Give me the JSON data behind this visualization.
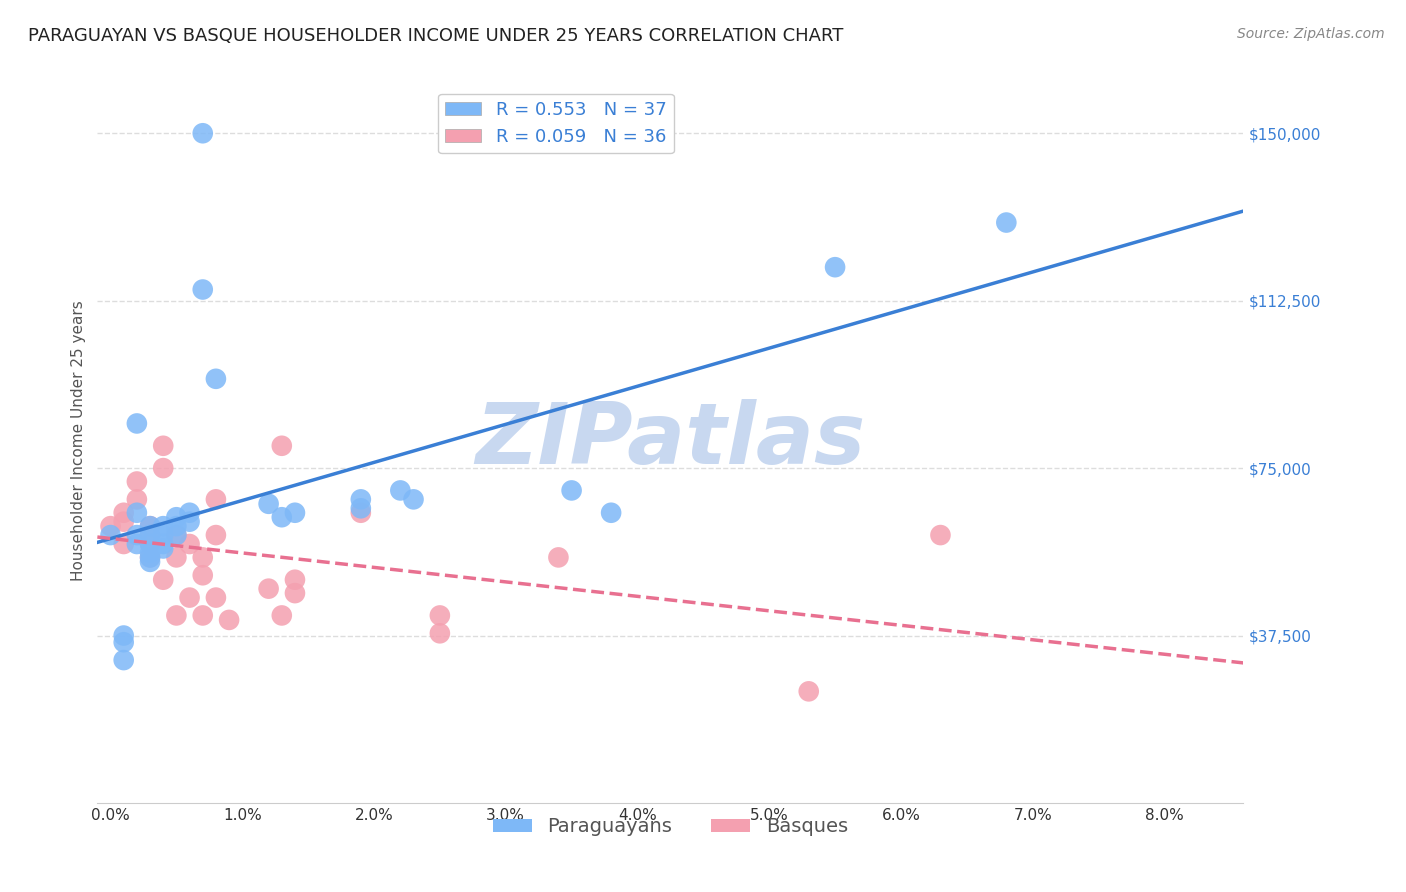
{
  "title": "PARAGUAYAN VS BASQUE HOUSEHOLDER INCOME UNDER 25 YEARS CORRELATION CHART",
  "source": "Source: ZipAtlas.com",
  "xlabel_ticks": [
    "0.0%",
    "1.0%",
    "2.0%",
    "3.0%",
    "4.0%",
    "5.0%",
    "6.0%",
    "7.0%",
    "8.0%"
  ],
  "xlabel_vals": [
    0.0,
    0.01,
    0.02,
    0.03,
    0.04,
    0.05,
    0.06,
    0.07,
    0.08
  ],
  "ylabel_ticks": [
    "$37,500",
    "$75,000",
    "$112,500",
    "$150,000"
  ],
  "ylabel_vals": [
    37500,
    75000,
    112500,
    150000
  ],
  "ylabel_label": "Householder Income Under 25 years",
  "ylim": [
    0,
    162500
  ],
  "xlim": [
    -0.001,
    0.086
  ],
  "paraguayan_R": "0.553",
  "paraguayan_N": "37",
  "basque_R": "0.059",
  "basque_N": "36",
  "paraguayan_color": "#7eb8f7",
  "basque_color": "#f4a0b0",
  "paraguayan_line_color": "#3a7fd5",
  "basque_line_color": "#e87090",
  "legend_label_paraguayan": "Paraguayans",
  "legend_label_basque": "Basques",
  "paraguayan_x": [
    0.0,
    0.001,
    0.001,
    0.001,
    0.002,
    0.002,
    0.002,
    0.002,
    0.003,
    0.003,
    0.003,
    0.003,
    0.003,
    0.003,
    0.004,
    0.004,
    0.004,
    0.004,
    0.005,
    0.005,
    0.005,
    0.006,
    0.006,
    0.007,
    0.007,
    0.008,
    0.012,
    0.013,
    0.014,
    0.019,
    0.019,
    0.022,
    0.023,
    0.035,
    0.038,
    0.055,
    0.068
  ],
  "paraguayan_y": [
    60000,
    37500,
    36000,
    32000,
    85000,
    65000,
    60000,
    58000,
    62000,
    60000,
    58000,
    56000,
    55000,
    54000,
    62000,
    60000,
    58000,
    57000,
    64000,
    62000,
    60000,
    65000,
    63000,
    150000,
    115000,
    95000,
    67000,
    64000,
    65000,
    68000,
    66000,
    70000,
    68000,
    70000,
    65000,
    120000,
    130000
  ],
  "basque_x": [
    0.0,
    0.001,
    0.001,
    0.001,
    0.002,
    0.002,
    0.003,
    0.003,
    0.003,
    0.003,
    0.004,
    0.004,
    0.004,
    0.005,
    0.005,
    0.005,
    0.006,
    0.006,
    0.007,
    0.007,
    0.007,
    0.008,
    0.008,
    0.008,
    0.009,
    0.012,
    0.013,
    0.013,
    0.014,
    0.014,
    0.019,
    0.025,
    0.025,
    0.034,
    0.053,
    0.063
  ],
  "basque_y": [
    62000,
    65000,
    63000,
    58000,
    72000,
    68000,
    62000,
    60000,
    58000,
    55000,
    80000,
    75000,
    50000,
    60000,
    55000,
    42000,
    58000,
    46000,
    55000,
    51000,
    42000,
    68000,
    60000,
    46000,
    41000,
    48000,
    80000,
    42000,
    50000,
    47000,
    65000,
    42000,
    38000,
    55000,
    25000,
    60000
  ],
  "watermark_text": "ZIPatlas",
  "background_color": "#ffffff",
  "grid_color": "#dddddd",
  "title_fontsize": 13,
  "axis_label_fontsize": 11,
  "tick_fontsize": 11,
  "legend_fontsize": 13,
  "watermark_color": "#c8d8f0"
}
